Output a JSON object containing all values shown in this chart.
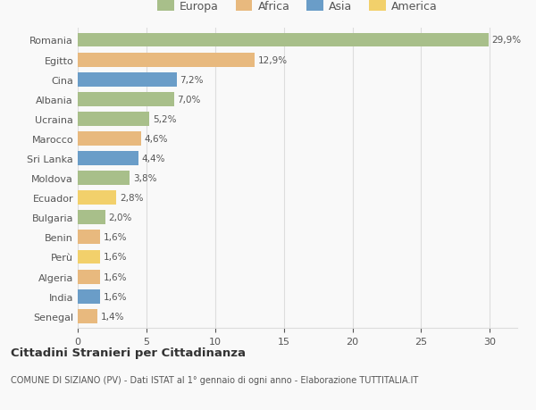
{
  "countries": [
    "Senegal",
    "India",
    "Algeria",
    "Perù",
    "Benin",
    "Bulgaria",
    "Ecuador",
    "Moldova",
    "Sri Lanka",
    "Marocco",
    "Ucraina",
    "Albania",
    "Cina",
    "Egitto",
    "Romania"
  ],
  "values": [
    1.4,
    1.6,
    1.6,
    1.6,
    1.6,
    2.0,
    2.8,
    3.8,
    4.4,
    4.6,
    5.2,
    7.0,
    7.2,
    12.9,
    29.9
  ],
  "labels": [
    "1,4%",
    "1,6%",
    "1,6%",
    "1,6%",
    "1,6%",
    "2,0%",
    "2,8%",
    "3,8%",
    "4,4%",
    "4,6%",
    "5,2%",
    "7,0%",
    "7,2%",
    "12,9%",
    "29,9%"
  ],
  "colors": [
    "#e8b97e",
    "#6a9dc8",
    "#e8b97e",
    "#f2d06b",
    "#e8b97e",
    "#a8bf8a",
    "#f2d06b",
    "#a8bf8a",
    "#6a9dc8",
    "#e8b97e",
    "#a8bf8a",
    "#a8bf8a",
    "#6a9dc8",
    "#e8b97e",
    "#a8bf8a"
  ],
  "legend_labels": [
    "Europa",
    "Africa",
    "Asia",
    "America"
  ],
  "legend_colors": [
    "#a8bf8a",
    "#e8b97e",
    "#6a9dc8",
    "#f2d06b"
  ],
  "title": "Cittadini Stranieri per Cittadinanza",
  "subtitle": "COMUNE DI SIZIANO (PV) - Dati ISTAT al 1° gennaio di ogni anno - Elaborazione TUTTITALIA.IT",
  "xlim": [
    0,
    32
  ],
  "xticks": [
    0,
    5,
    10,
    15,
    20,
    25,
    30
  ],
  "bg_color": "#f9f9f9",
  "grid_color": "#dddddd",
  "text_color": "#555555"
}
